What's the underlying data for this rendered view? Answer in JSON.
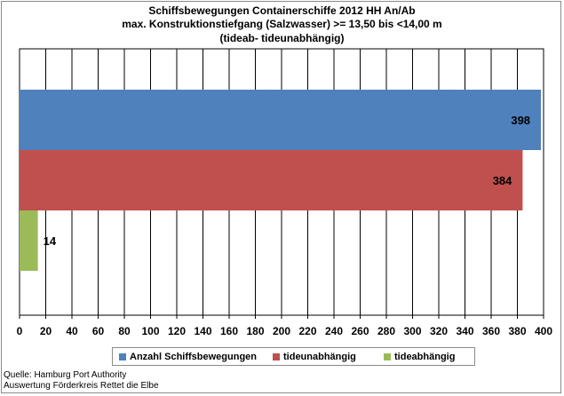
{
  "chart_data": {
    "type": "bar",
    "orientation": "horizontal",
    "title_lines": [
      "Schiffsbewegungen  Containerschiffe  2012 HH An/Ab",
      "max. Konstruktionstiefgang  (Salzwasser)  >= 13,50 bis <14,00 m",
      "(tideab- tideunabhängig)"
    ],
    "series": [
      {
        "name": "Anzahl Schiffsbewegungen",
        "value": 398,
        "label": "398",
        "color": "#4f81bd"
      },
      {
        "name": "tideunabhängig",
        "value": 384,
        "label": "384",
        "color": "#c0504d"
      },
      {
        "name": "tideabhängig",
        "value": 14,
        "label": "14",
        "color": "#9bbb59"
      }
    ],
    "xlim": [
      0,
      400
    ],
    "x_ticks": [
      "0",
      "20",
      "40",
      "60",
      "80",
      "100",
      "120",
      "140",
      "160",
      "180",
      "200",
      "220",
      "240",
      "260",
      "280",
      "300",
      "320",
      "340",
      "360",
      "380",
      "400"
    ],
    "grid": "vertical",
    "legend_position": "bottom"
  },
  "source": {
    "line1": "Quelle: Hamburg Port Authority",
    "line2": "Auswertung Förderkreis Rettet die Elbe"
  }
}
